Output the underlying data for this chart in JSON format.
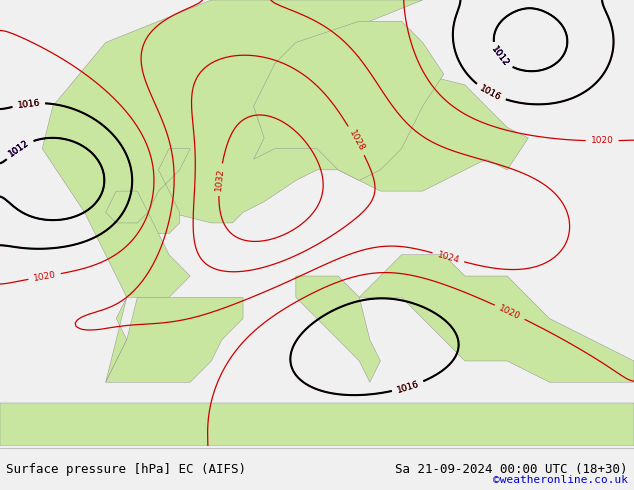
{
  "title_left": "Surface pressure [hPa] EC (AIFS)",
  "title_right": "Sa 21-09-2024 00:00 UTC (18+30)",
  "credit": "©weatheronline.co.uk",
  "bg_color": "#f0f0f0",
  "map_bg": "#c8e6a0",
  "sea_color": "#d0e8f8",
  "land_color": "#c8e6a0",
  "text_color_black": "#000000",
  "text_color_blue": "#0000cc",
  "credit_color": "#0000cc",
  "contour_red": "#cc0000",
  "contour_blue": "#0000cc",
  "contour_black": "#000000",
  "font_size_title": 9,
  "font_size_credit": 8
}
